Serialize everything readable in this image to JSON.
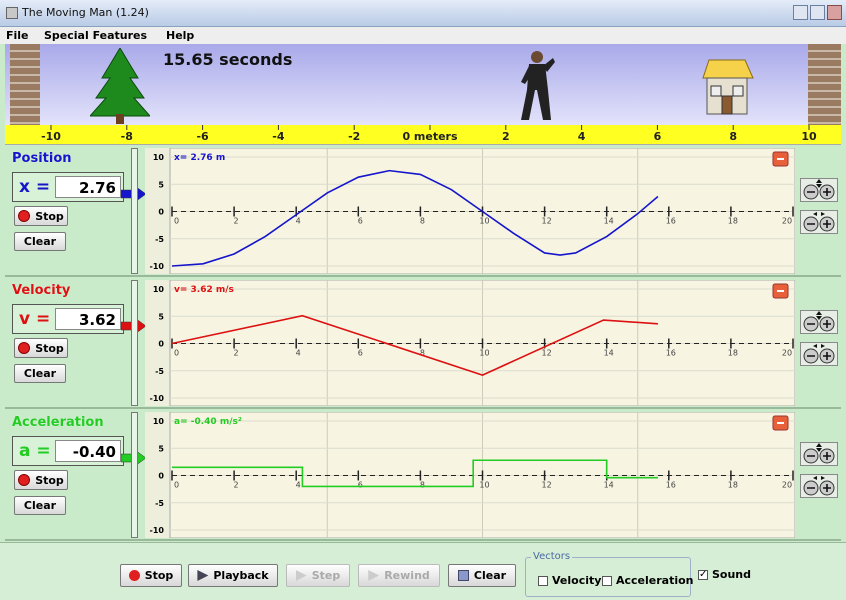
{
  "window": {
    "title": "The Moving Man (1.24)"
  },
  "menu": [
    "File",
    "Special Features",
    "Help"
  ],
  "scene": {
    "time": "15.65 seconds",
    "ruler_ticks": [
      -10,
      -8,
      -6,
      -4,
      -2,
      {
        "value": 0,
        "label": "0 meters"
      },
      2,
      4,
      6,
      8,
      10
    ]
  },
  "graphs": [
    {
      "label": "Position",
      "symbol": "x =",
      "field": "2.76",
      "readout": "x= 2.76 m",
      "color": "#1515cc",
      "stop": "Stop",
      "clear": "Clear",
      "xlim": [
        0,
        20
      ],
      "ylim": [
        -10,
        10
      ],
      "yticks": [
        10,
        5,
        0,
        -5,
        -10
      ],
      "xticks": [
        0,
        2,
        4,
        6,
        8,
        10,
        12,
        14,
        16,
        18,
        20
      ],
      "xgrid": [
        5,
        10,
        15
      ],
      "x": [
        0,
        1,
        2,
        3,
        4,
        5,
        6,
        7,
        8,
        9,
        10,
        11,
        12,
        12.5,
        13,
        14,
        15,
        15.65
      ],
      "values": [
        -10,
        -9.6,
        -7.8,
        -4.6,
        -0.6,
        3.4,
        6.3,
        7.5,
        6.8,
        4,
        0,
        -4,
        -7.6,
        -8,
        -7.6,
        -4.6,
        -0.4,
        2.76
      ]
    },
    {
      "label": "Velocity",
      "symbol": "v =",
      "field": "3.62",
      "readout": "v= 3.62 m/s",
      "color": "#dd1111",
      "stop": "Stop",
      "clear": "Clear",
      "xlim": [
        0,
        20
      ],
      "ylim": [
        -10,
        10
      ],
      "yticks": [
        10,
        5,
        0,
        -5,
        -10
      ],
      "xticks": [
        0,
        2,
        4,
        6,
        8,
        10,
        12,
        14,
        16,
        18,
        20
      ],
      "xgrid": [
        5,
        10,
        15
      ],
      "x": [
        0,
        4.2,
        10,
        13.9,
        15.65
      ],
      "values": [
        0,
        5.1,
        -5.8,
        4.3,
        3.62
      ]
    },
    {
      "label": "Acceleration",
      "symbol": "a =",
      "field": "-0.40",
      "readout": "a= -0.40 m/s²",
      "color": "#22cc22",
      "stop": "Stop",
      "clear": "Clear",
      "xlim": [
        0,
        20
      ],
      "ylim": [
        -10,
        10
      ],
      "yticks": [
        10,
        5,
        0,
        -5,
        -10
      ],
      "xticks": [
        0,
        2,
        4,
        6,
        8,
        10,
        12,
        14,
        16,
        18,
        20
      ],
      "xgrid": [
        5,
        10,
        15
      ],
      "x": [
        0,
        4.2,
        4.2,
        9.7,
        9.7,
        14,
        14,
        15.65
      ],
      "values": [
        1.5,
        1.5,
        -2,
        -2,
        2.8,
        2.8,
        -0.4,
        -0.4
      ]
    }
  ],
  "controls": {
    "buttons": [
      "Stop",
      "Playback",
      "Step",
      "Rewind",
      "Clear"
    ],
    "vectors": {
      "title": "Vectors",
      "options": [
        "Velocity",
        "Acceleration"
      ]
    },
    "sound": "Sound"
  }
}
